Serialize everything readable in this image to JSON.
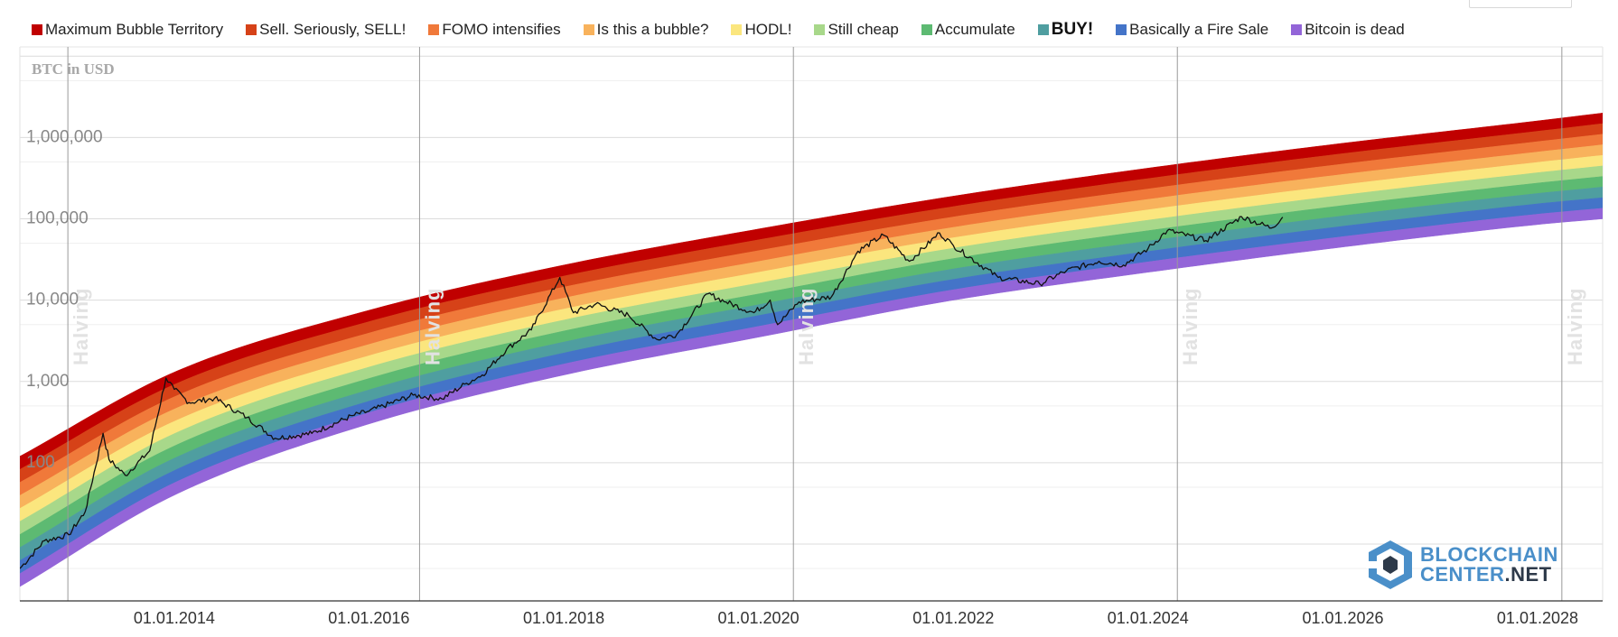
{
  "legend": [
    {
      "label": "Maximum Bubble Territory",
      "color": "#c00000",
      "bold": false
    },
    {
      "label": "Sell. Seriously, SELL!",
      "color": "#d64218",
      "bold": false
    },
    {
      "label": "FOMO intensifies",
      "color": "#f0793a",
      "bold": false
    },
    {
      "label": "Is this a bubble?",
      "color": "#f8b25c",
      "bold": false
    },
    {
      "label": "HODL!",
      "color": "#fbe67e",
      "bold": false
    },
    {
      "label": "Still cheap",
      "color": "#a8d88a",
      "bold": false
    },
    {
      "label": "Accumulate",
      "color": "#5dba72",
      "bold": false
    },
    {
      "label": "BUY!",
      "color": "#4f9ea0",
      "bold": true
    },
    {
      "label": "Basically a Fire Sale",
      "color": "#4474c8",
      "bold": false
    },
    {
      "label": "Bitcoin is dead",
      "color": "#9365d8",
      "bold": false
    }
  ],
  "chart_data": {
    "type": "line",
    "title": "",
    "ylabel": "BTC in USD",
    "yscale": "log",
    "ylim": [
      2,
      13000000
    ],
    "xlim": [
      "2012-06-01",
      "2028-09-01"
    ],
    "grid": true,
    "yticks": [
      {
        "value": 100,
        "label": "100"
      },
      {
        "value": 1000,
        "label": "1,000"
      },
      {
        "value": 10000,
        "label": "10,000"
      },
      {
        "value": 100000,
        "label": "100,000"
      },
      {
        "value": 1000000,
        "label": "1,000,000"
      }
    ],
    "xticks": [
      {
        "date": "2014-01-01",
        "label": "01.01.2014"
      },
      {
        "date": "2016-01-01",
        "label": "01.01.2016"
      },
      {
        "date": "2018-01-01",
        "label": "01.01.2018"
      },
      {
        "date": "2020-01-01",
        "label": "01.01.2020"
      },
      {
        "date": "2022-01-01",
        "label": "01.01.2022"
      },
      {
        "date": "2024-01-01",
        "label": "01.01.2024"
      },
      {
        "date": "2026-01-01",
        "label": "01.01.2026"
      },
      {
        "date": "2028-01-01",
        "label": "01.01.2028"
      }
    ],
    "halvings": [
      {
        "date": "2012-11-28",
        "label": "Halving"
      },
      {
        "date": "2016-07-09",
        "label": "Halving"
      },
      {
        "date": "2020-05-11",
        "label": "Halving"
      },
      {
        "date": "2024-04-20",
        "label": "Halving"
      },
      {
        "date": "2028-04-01",
        "label": "Halving"
      }
    ],
    "bands": {
      "bottom_line": [
        {
          "date": "2012-06-01",
          "value": 3
        },
        {
          "date": "2014-01-01",
          "value": 40
        },
        {
          "date": "2016-01-01",
          "value": 300
        },
        {
          "date": "2018-01-01",
          "value": 1200
        },
        {
          "date": "2020-01-01",
          "value": 3500
        },
        {
          "date": "2022-01-01",
          "value": 10000
        },
        {
          "date": "2024-01-01",
          "value": 22000
        },
        {
          "date": "2026-01-01",
          "value": 45000
        },
        {
          "date": "2028-01-01",
          "value": 85000
        },
        {
          "date": "2028-09-01",
          "value": 100000
        }
      ],
      "top_line": [
        {
          "date": "2012-06-01",
          "value": 120
        },
        {
          "date": "2014-01-01",
          "value": 1300
        },
        {
          "date": "2016-01-01",
          "value": 7500
        },
        {
          "date": "2018-01-01",
          "value": 27000
        },
        {
          "date": "2020-01-01",
          "value": 75000
        },
        {
          "date": "2022-01-01",
          "value": 190000
        },
        {
          "date": "2024-01-01",
          "value": 420000
        },
        {
          "date": "2026-01-01",
          "value": 850000
        },
        {
          "date": "2028-01-01",
          "value": 1600000
        },
        {
          "date": "2028-09-01",
          "value": 2000000
        }
      ]
    },
    "series": [
      {
        "name": "",
        "color": "#111111",
        "points": [
          [
            "2012-06-01",
            5
          ],
          [
            "2012-09-01",
            11
          ],
          [
            "2012-12-01",
            13
          ],
          [
            "2013-02-01",
            25
          ],
          [
            "2013-04-09",
            230
          ],
          [
            "2013-05-01",
            110
          ],
          [
            "2013-07-01",
            70
          ],
          [
            "2013-10-01",
            140
          ],
          [
            "2013-12-01",
            1100
          ],
          [
            "2014-01-01",
            800
          ],
          [
            "2014-02-25",
            550
          ],
          [
            "2014-06-01",
            620
          ],
          [
            "2014-10-01",
            360
          ],
          [
            "2015-01-14",
            200
          ],
          [
            "2015-06-01",
            230
          ],
          [
            "2015-11-01",
            380
          ],
          [
            "2016-01-01",
            430
          ],
          [
            "2016-06-15",
            680
          ],
          [
            "2016-10-01",
            610
          ],
          [
            "2017-01-01",
            950
          ],
          [
            "2017-03-01",
            1200
          ],
          [
            "2017-06-01",
            2500
          ],
          [
            "2017-09-01",
            4300
          ],
          [
            "2017-12-17",
            19000
          ],
          [
            "2018-02-06",
            7000
          ],
          [
            "2018-05-01",
            9000
          ],
          [
            "2018-09-01",
            6500
          ],
          [
            "2018-12-15",
            3300
          ],
          [
            "2019-03-01",
            3800
          ],
          [
            "2019-06-26",
            12000
          ],
          [
            "2019-09-01",
            9500
          ],
          [
            "2019-12-15",
            7000
          ],
          [
            "2020-02-14",
            10000
          ],
          [
            "2020-03-13",
            5000
          ],
          [
            "2020-06-01",
            9500
          ],
          [
            "2020-10-01",
            11000
          ],
          [
            "2021-01-08",
            40000
          ],
          [
            "2021-04-14",
            63000
          ],
          [
            "2021-07-20",
            30000
          ],
          [
            "2021-11-10",
            67000
          ],
          [
            "2022-01-01",
            47000
          ],
          [
            "2022-06-18",
            19000
          ],
          [
            "2022-11-21",
            15800
          ],
          [
            "2023-03-01",
            23000
          ],
          [
            "2023-07-01",
            30000
          ],
          [
            "2023-10-01",
            27000
          ],
          [
            "2024-01-01",
            43000
          ],
          [
            "2024-03-14",
            72000
          ],
          [
            "2024-08-05",
            54000
          ],
          [
            "2024-12-17",
            106000
          ],
          [
            "2025-04-08",
            77000
          ],
          [
            "2025-05-20",
            105000
          ]
        ]
      }
    ]
  },
  "logo": {
    "line1": "BLOCKCHAIN",
    "line2a": "CENTER",
    "line2b": ".NET"
  }
}
